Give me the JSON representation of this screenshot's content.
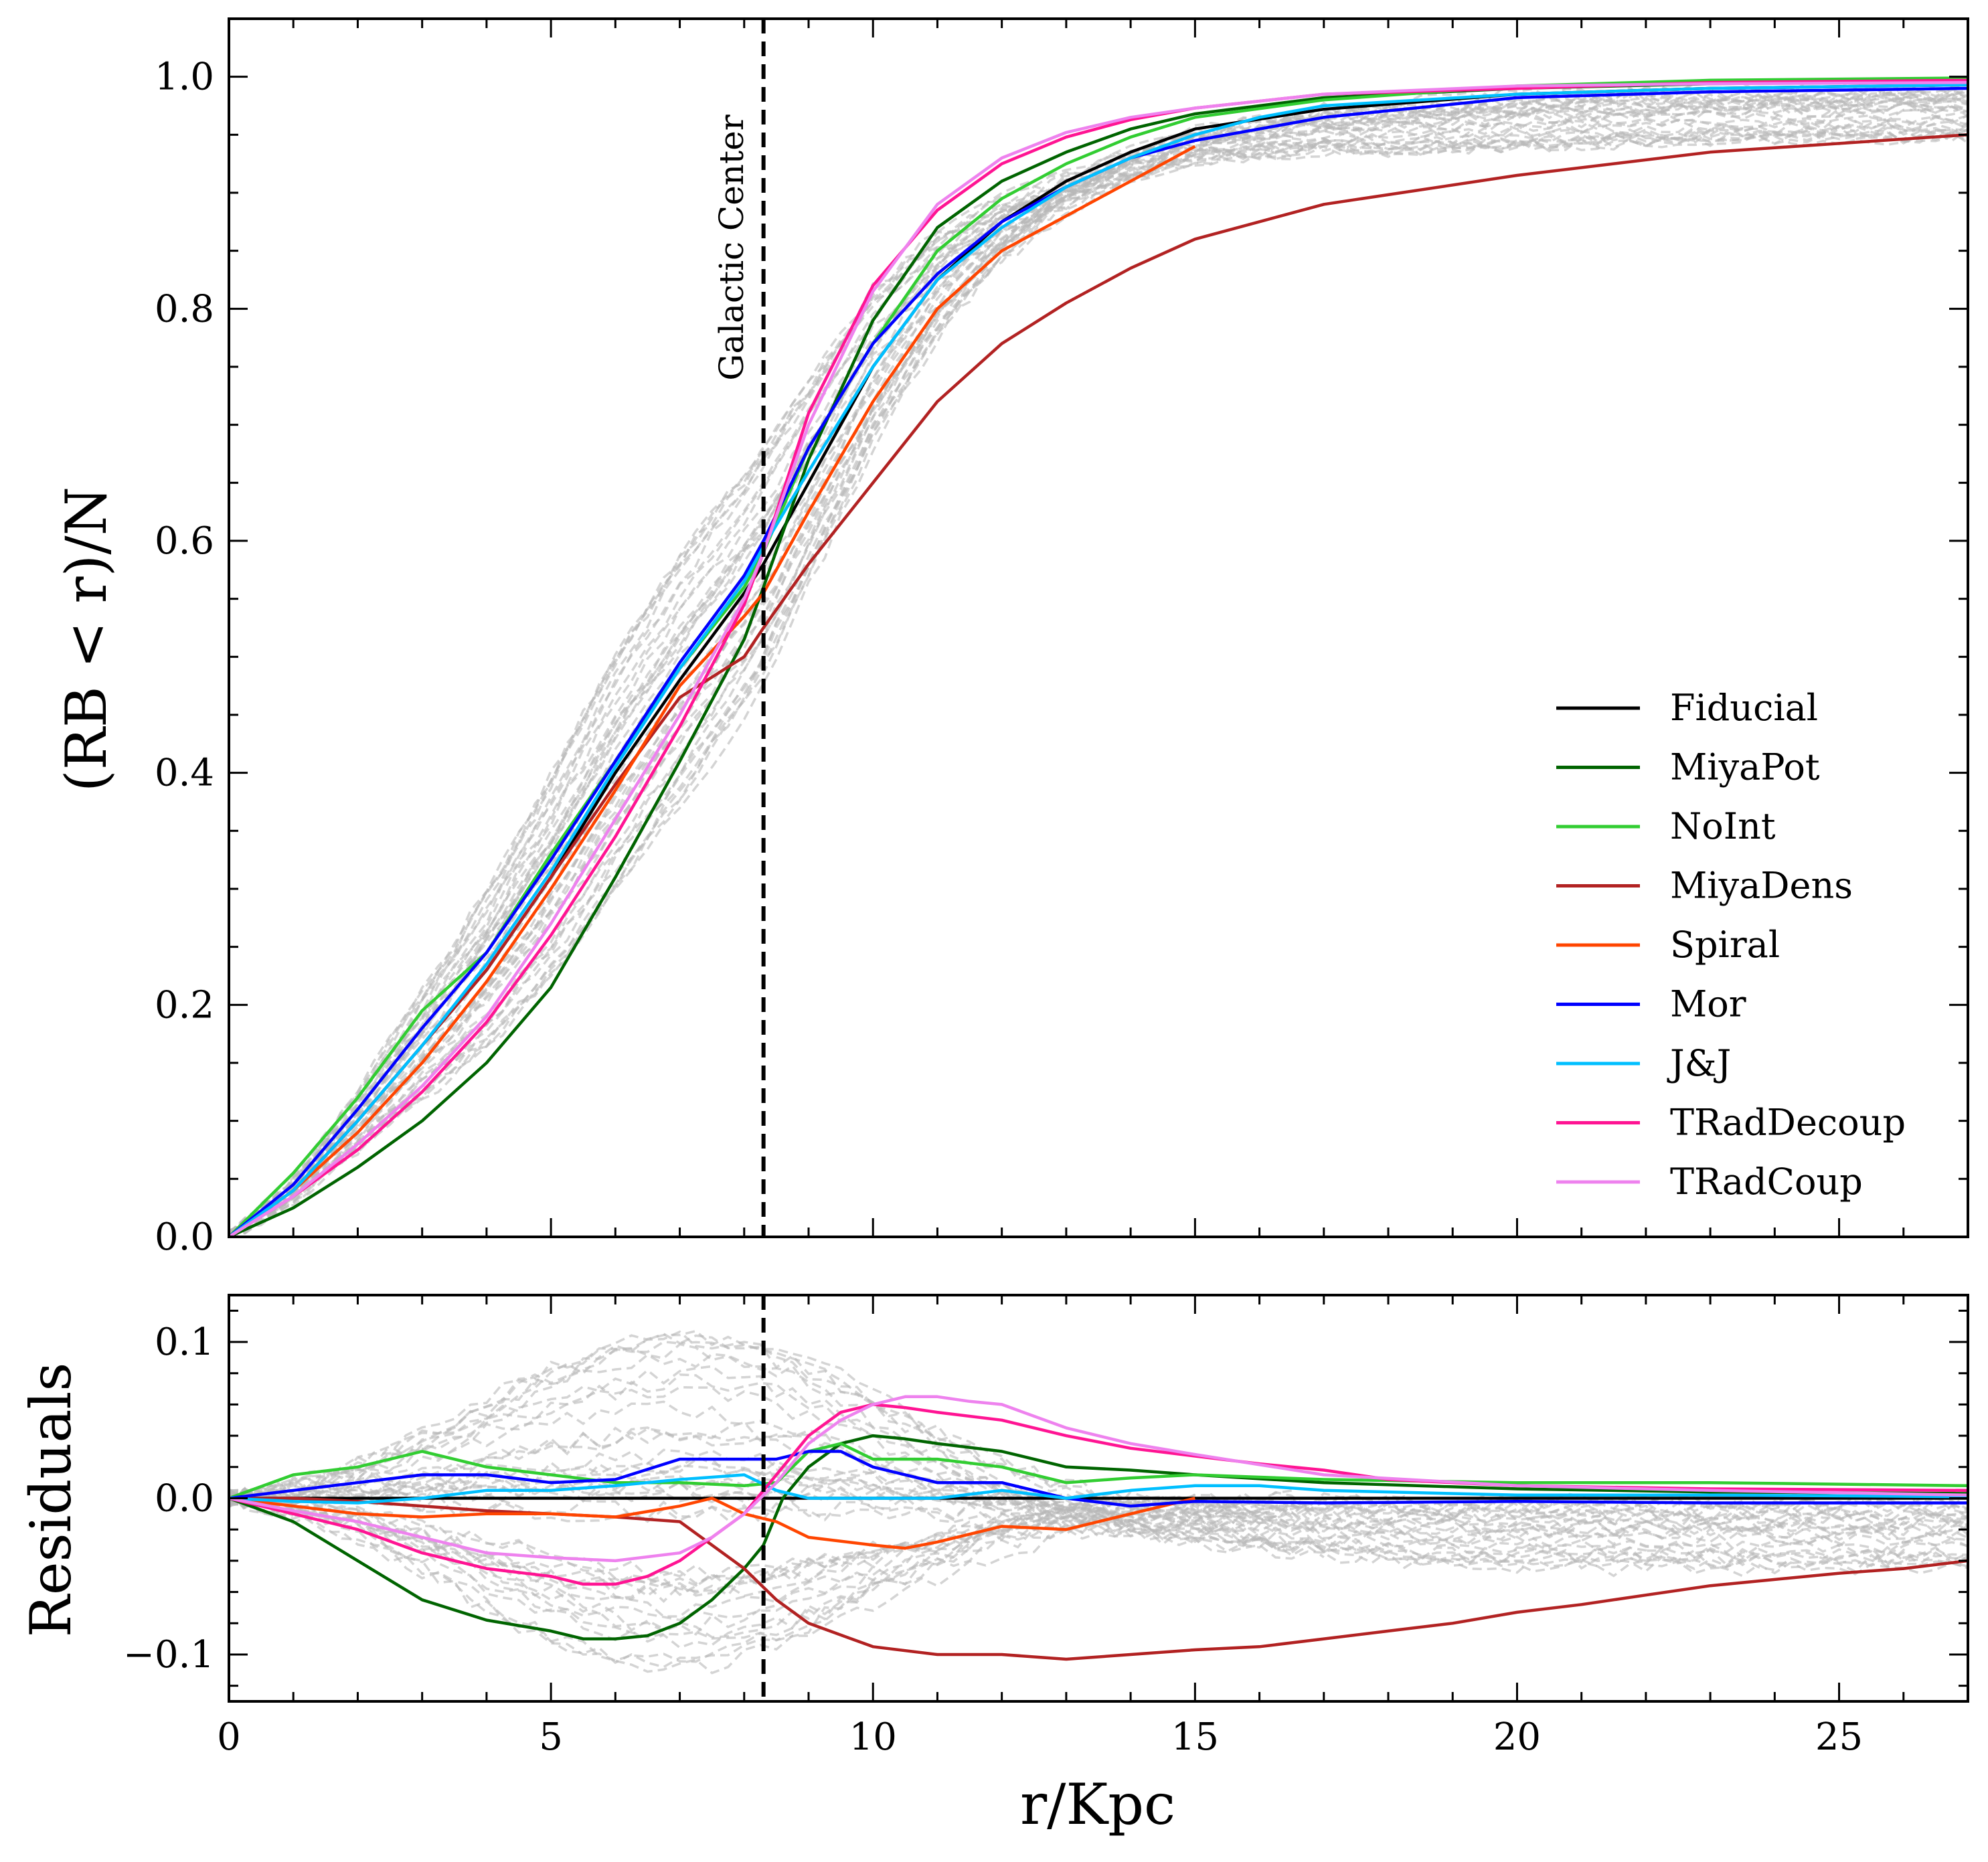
{
  "chart_data": [
    {
      "type": "line",
      "panel": "top",
      "title": "",
      "xlabel": "",
      "ylabel": "(RB < r)/N",
      "xlim": [
        0,
        27
      ],
      "ylim": [
        0,
        1.05
      ],
      "xticks": [
        0,
        5,
        10,
        15,
        20,
        25
      ],
      "yticks": [
        0.0,
        0.2,
        0.4,
        0.6,
        0.8,
        1.0
      ],
      "ytick_labels": [
        "0.0",
        "0.2",
        "0.4",
        "0.6",
        "0.8",
        "1.0"
      ],
      "grid": false,
      "legend_position": "lower-right",
      "annotation": {
        "text": "Galactic Center",
        "x": 8.3
      },
      "vline": {
        "x": 8.3,
        "style": "dashed",
        "color": "#000000"
      },
      "series": [
        {
          "name": "Fiducial",
          "color": "#000000",
          "x": [
            0,
            1,
            2,
            3,
            4,
            5,
            6,
            7,
            8,
            8.3,
            9,
            10,
            11,
            12,
            13,
            14,
            15,
            17,
            20,
            23,
            27
          ],
          "y": [
            0,
            0.04,
            0.1,
            0.165,
            0.23,
            0.31,
            0.4,
            0.48,
            0.555,
            0.58,
            0.65,
            0.75,
            0.825,
            0.875,
            0.91,
            0.935,
            0.955,
            0.972,
            0.985,
            0.99,
            0.993
          ]
        },
        {
          "name": "MiyaPot",
          "color": "#006400",
          "x": [
            0,
            1,
            2,
            3,
            4,
            5,
            6,
            7,
            8,
            8.3,
            9,
            10,
            11,
            12,
            13,
            14,
            15,
            17,
            20,
            23,
            27
          ],
          "y": [
            0,
            0.025,
            0.06,
            0.1,
            0.15,
            0.215,
            0.31,
            0.41,
            0.515,
            0.56,
            0.67,
            0.79,
            0.87,
            0.91,
            0.935,
            0.955,
            0.968,
            0.982,
            0.99,
            0.994,
            0.996
          ]
        },
        {
          "name": "NoInt",
          "color": "#32CD32",
          "x": [
            0,
            1,
            2,
            3,
            4,
            5,
            6,
            7,
            8,
            8.3,
            9,
            10,
            11,
            12,
            13,
            14,
            15,
            17,
            20,
            23,
            27
          ],
          "y": [
            0,
            0.055,
            0.12,
            0.195,
            0.245,
            0.33,
            0.41,
            0.49,
            0.56,
            0.59,
            0.68,
            0.77,
            0.85,
            0.895,
            0.925,
            0.948,
            0.965,
            0.98,
            0.992,
            0.997,
            0.999
          ]
        },
        {
          "name": "MiyaDens",
          "color": "#B22222",
          "x": [
            0,
            1,
            2,
            3,
            4,
            5,
            6,
            7,
            8,
            8.3,
            9,
            10,
            11,
            12,
            13,
            14,
            15,
            17,
            20,
            23,
            27
          ],
          "y": [
            0,
            0.04,
            0.1,
            0.165,
            0.23,
            0.31,
            0.39,
            0.465,
            0.5,
            0.525,
            0.58,
            0.65,
            0.72,
            0.77,
            0.805,
            0.835,
            0.86,
            0.89,
            0.915,
            0.935,
            0.95
          ]
        },
        {
          "name": "Spiral",
          "color": "#FF4500",
          "x": [
            0,
            1,
            2,
            3,
            4,
            5,
            6,
            7,
            8,
            8.3,
            9,
            10,
            11,
            12,
            13,
            14,
            15
          ],
          "y": [
            0,
            0.04,
            0.09,
            0.15,
            0.22,
            0.3,
            0.385,
            0.475,
            0.535,
            0.555,
            0.625,
            0.72,
            0.8,
            0.85,
            0.88,
            0.91,
            0.94
          ]
        },
        {
          "name": "Mor",
          "color": "#0000FF",
          "x": [
            0,
            1,
            2,
            3,
            4,
            5,
            6,
            7,
            8,
            8.3,
            9,
            10,
            11,
            12,
            13,
            14,
            15,
            17,
            20,
            23,
            27
          ],
          "y": [
            0,
            0.045,
            0.11,
            0.18,
            0.245,
            0.325,
            0.41,
            0.495,
            0.57,
            0.6,
            0.68,
            0.77,
            0.83,
            0.875,
            0.905,
            0.93,
            0.945,
            0.965,
            0.982,
            0.987,
            0.99
          ]
        },
        {
          "name": "J&J",
          "color": "#00BFFF",
          "x": [
            0,
            1,
            2,
            3,
            4,
            5,
            6,
            7,
            8,
            8.3,
            9,
            10,
            11,
            12,
            13,
            14,
            15,
            16,
            17,
            20,
            23,
            27
          ],
          "y": [
            0,
            0.04,
            0.1,
            0.165,
            0.235,
            0.315,
            0.405,
            0.49,
            0.565,
            0.595,
            0.66,
            0.75,
            0.825,
            0.87,
            0.905,
            0.93,
            0.95,
            0.965,
            0.975,
            0.985,
            0.99,
            0.993
          ]
        },
        {
          "name": "TRadDecoup",
          "color": "#FF1493",
          "x": [
            0,
            1,
            2,
            3,
            4,
            5,
            6,
            7,
            8,
            8.3,
            9,
            10,
            11,
            12,
            13,
            14,
            15,
            17,
            20,
            23,
            27
          ],
          "y": [
            0,
            0.035,
            0.075,
            0.125,
            0.185,
            0.26,
            0.345,
            0.44,
            0.545,
            0.59,
            0.71,
            0.82,
            0.885,
            0.925,
            0.948,
            0.963,
            0.973,
            0.985,
            0.99,
            0.995,
            0.997
          ]
        },
        {
          "name": "TRadCoup",
          "color": "#EE82EE",
          "x": [
            0,
            1,
            2,
            3,
            4,
            5,
            6,
            7,
            8,
            8.3,
            9,
            10,
            11,
            12,
            13,
            14,
            15,
            17,
            20,
            23,
            27
          ],
          "y": [
            0,
            0.035,
            0.08,
            0.13,
            0.19,
            0.27,
            0.36,
            0.45,
            0.55,
            0.59,
            0.7,
            0.815,
            0.89,
            0.93,
            0.952,
            0.965,
            0.973,
            0.985,
            0.992,
            0.994,
            0.995
          ]
        }
      ]
    },
    {
      "type": "line",
      "panel": "bottom",
      "title": "",
      "xlabel": "r/Kpc",
      "ylabel": "Residuals",
      "xlim": [
        0,
        27
      ],
      "ylim": [
        -0.13,
        0.13
      ],
      "xticks": [
        0,
        5,
        10,
        15,
        20,
        25
      ],
      "xtick_labels": [
        "0",
        "5",
        "10",
        "15",
        "20",
        "25"
      ],
      "yticks": [
        -0.1,
        0.0,
        0.1
      ],
      "ytick_labels": [
        "−0.1",
        "0.0",
        "0.1"
      ],
      "grid": false,
      "vline": {
        "x": 8.3,
        "style": "dashed",
        "color": "#000000"
      },
      "series": [
        {
          "name": "Fiducial",
          "color": "#000000",
          "x": [
            0,
            27
          ],
          "y": [
            0,
            0
          ]
        },
        {
          "name": "MiyaPot",
          "color": "#006400",
          "x": [
            0,
            1,
            2,
            3,
            4,
            5,
            5.5,
            6,
            6.5,
            7,
            7.5,
            8,
            8.3,
            8.6,
            9,
            9.5,
            10,
            10.5,
            11,
            12,
            13,
            14,
            15,
            17,
            20,
            23,
            27
          ],
          "y": [
            0,
            -0.015,
            -0.04,
            -0.065,
            -0.078,
            -0.085,
            -0.09,
            -0.09,
            -0.088,
            -0.08,
            -0.065,
            -0.045,
            -0.03,
            0.0,
            0.02,
            0.035,
            0.04,
            0.038,
            0.035,
            0.03,
            0.02,
            0.018,
            0.015,
            0.01,
            0.006,
            0.004,
            0.003
          ]
        },
        {
          "name": "NoInt",
          "color": "#32CD32",
          "x": [
            0,
            1,
            2,
            3,
            4,
            5,
            6,
            7,
            8,
            8.5,
            9,
            9.5,
            10,
            11,
            12,
            13,
            14,
            15,
            17,
            20,
            23,
            27
          ],
          "y": [
            0,
            0.015,
            0.02,
            0.03,
            0.02,
            0.015,
            0.01,
            0.01,
            0.008,
            0.01,
            0.03,
            0.035,
            0.025,
            0.025,
            0.02,
            0.01,
            0.013,
            0.015,
            0.012,
            0.01,
            0.01,
            0.008
          ]
        },
        {
          "name": "MiyaDens",
          "color": "#B22222",
          "x": [
            0,
            1,
            2,
            3,
            4,
            5,
            6,
            7,
            8,
            8.5,
            9,
            10,
            11,
            12,
            13,
            14,
            15,
            16,
            17,
            18,
            19,
            20,
            21,
            22,
            23,
            24,
            25,
            26,
            27
          ],
          "y": [
            0,
            0,
            -0.002,
            -0.005,
            -0.008,
            -0.01,
            -0.012,
            -0.015,
            -0.045,
            -0.065,
            -0.08,
            -0.095,
            -0.1,
            -0.1,
            -0.103,
            -0.1,
            -0.097,
            -0.095,
            -0.09,
            -0.085,
            -0.08,
            -0.073,
            -0.068,
            -0.062,
            -0.056,
            -0.052,
            -0.048,
            -0.045,
            -0.04
          ]
        },
        {
          "name": "Spiral",
          "color": "#FF4500",
          "x": [
            0,
            1,
            2,
            3,
            4,
            5,
            6,
            7,
            7.5,
            8,
            8.5,
            9,
            10,
            10.5,
            11,
            12,
            13,
            14,
            15
          ],
          "y": [
            0,
            -0.005,
            -0.01,
            -0.012,
            -0.01,
            -0.01,
            -0.012,
            -0.005,
            0.0,
            -0.01,
            -0.015,
            -0.025,
            -0.03,
            -0.032,
            -0.028,
            -0.018,
            -0.02,
            -0.01,
            0.0
          ]
        },
        {
          "name": "Mor",
          "color": "#0000FF",
          "x": [
            0,
            1,
            2,
            3,
            4,
            5,
            6,
            7,
            8,
            8.5,
            9,
            9.5,
            10,
            11,
            12,
            13,
            14,
            15,
            17,
            20,
            23,
            27
          ],
          "y": [
            0,
            0.005,
            0.01,
            0.015,
            0.015,
            0.01,
            0.012,
            0.025,
            0.025,
            0.025,
            0.03,
            0.03,
            0.02,
            0.01,
            0.01,
            0.0,
            -0.005,
            -0.002,
            -0.003,
            -0.002,
            -0.003,
            -0.003
          ]
        },
        {
          "name": "J&J",
          "color": "#00BFFF",
          "x": [
            0,
            1,
            2,
            3,
            4,
            5,
            6,
            7,
            8,
            8.5,
            9,
            10,
            11,
            12,
            13,
            14,
            15,
            16,
            17,
            20,
            23,
            27
          ],
          "y": [
            0,
            -0.002,
            -0.003,
            0.0,
            0.005,
            0.005,
            0.008,
            0.012,
            0.015,
            0.005,
            0.0,
            0.0,
            0.0,
            0.005,
            0.0,
            0.005,
            0.008,
            0.008,
            0.005,
            0.002,
            0.002,
            0.001
          ]
        },
        {
          "name": "TRadDecoup",
          "color": "#FF1493",
          "x": [
            0,
            1,
            2,
            3,
            4,
            5,
            5.5,
            6,
            6.5,
            7,
            7.5,
            8,
            8.5,
            9,
            9.5,
            10,
            10.5,
            11,
            12,
            13,
            14,
            15,
            16,
            17,
            18,
            19,
            20,
            23,
            27
          ],
          "y": [
            0,
            -0.01,
            -0.02,
            -0.035,
            -0.045,
            -0.05,
            -0.055,
            -0.055,
            -0.05,
            -0.04,
            -0.025,
            -0.01,
            0.015,
            0.04,
            0.055,
            0.06,
            0.058,
            0.055,
            0.05,
            0.04,
            0.032,
            0.027,
            0.022,
            0.018,
            0.012,
            0.01,
            0.008,
            0.006,
            0.005
          ]
        },
        {
          "name": "TRadCoup",
          "color": "#EE82EE",
          "x": [
            0,
            1,
            2,
            3,
            4,
            5,
            6,
            7,
            7.5,
            8,
            8.5,
            9,
            9.5,
            10,
            10.5,
            11,
            11.5,
            12,
            13,
            14,
            15,
            17,
            20,
            23,
            27
          ],
          "y": [
            0,
            -0.008,
            -0.015,
            -0.025,
            -0.035,
            -0.038,
            -0.04,
            -0.035,
            -0.025,
            -0.01,
            0.01,
            0.035,
            0.05,
            0.06,
            0.065,
            0.065,
            0.062,
            0.06,
            0.045,
            0.035,
            0.028,
            0.015,
            0.008,
            0.005,
            0.002
          ]
        }
      ]
    }
  ],
  "background_lines": {
    "color": "#b8b8b8",
    "style": "dashed",
    "count": 40
  },
  "colors": {
    "axis": "#000000",
    "background": "#ffffff"
  }
}
